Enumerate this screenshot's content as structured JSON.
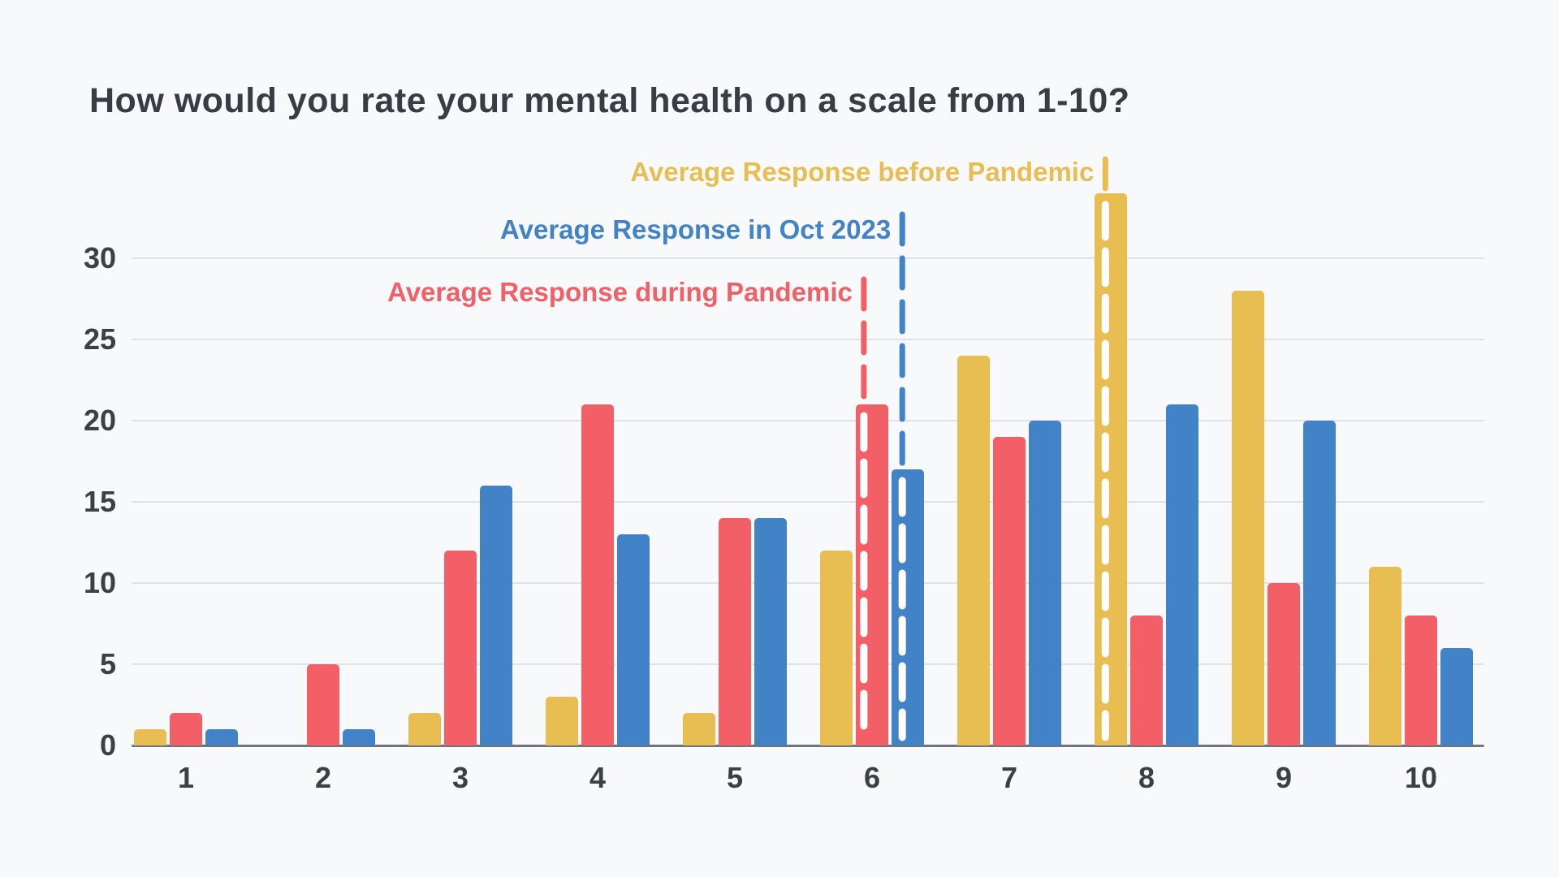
{
  "title": "How would you rate your mental health on a scale from 1-10?",
  "chart_data": {
    "type": "bar",
    "title": "How would you rate your mental health on a scale from 1-10?",
    "categories": [
      "1",
      "2",
      "3",
      "4",
      "5",
      "6",
      "7",
      "8",
      "9",
      "10"
    ],
    "series": [
      {
        "name": "Average Response before Pandemic",
        "color": "#e8be52",
        "values": [
          1,
          0,
          2,
          3,
          2,
          12,
          24,
          34,
          28,
          11
        ]
      },
      {
        "name": "Average Response during Pandemic",
        "color": "#f25f66",
        "values": [
          2,
          5,
          12,
          21,
          14,
          21,
          19,
          8,
          10,
          8
        ]
      },
      {
        "name": "Average Response in Oct 2023",
        "color": "#4183c6",
        "values": [
          1,
          1,
          16,
          13,
          14,
          17,
          20,
          21,
          20,
          6
        ]
      }
    ],
    "y_ticks": [
      0,
      5,
      10,
      15,
      20,
      25,
      30
    ],
    "ylim": [
      0,
      35
    ],
    "xlabel": "",
    "ylabel": "",
    "grid": true,
    "legend_position": "stacked labels upper area, right-aligned to marker lines",
    "markers": [
      {
        "label": "Average Response before Pandemic",
        "color": "#e8be52",
        "x_rating": 7.7
      },
      {
        "label": "Average Response in Oct 2023",
        "color": "#4183c6",
        "x_rating": 6.22
      },
      {
        "label": "Average Response during Pandemic",
        "color": "#f25f66",
        "x_rating": 5.94
      }
    ]
  },
  "colors": {
    "background": "#f8f9fb",
    "gridline": "#e0e2e7",
    "axis_line": "#70757b",
    "text": "#3b4046"
  }
}
